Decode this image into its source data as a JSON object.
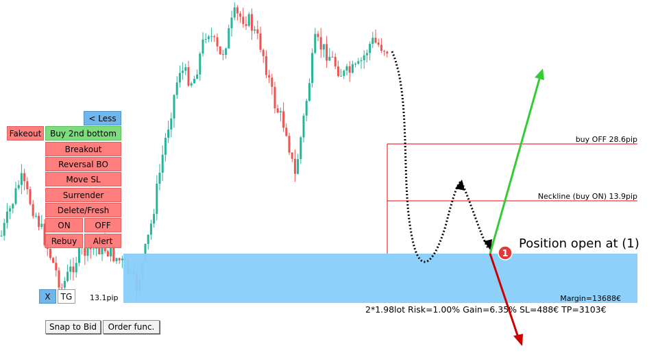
{
  "panel": {
    "less_button": "< Less",
    "fakeout": "Fakeout",
    "buy_2nd_bottom": "Buy 2nd bottom",
    "breakout": "Breakout",
    "reversal_bo": "Reversal BO",
    "move_sl": "Move SL",
    "surrender": "Surrender",
    "delete_fresh": "Delete/Fresh",
    "on": "ON",
    "off": "OFF",
    "rebuy": "Rebuy",
    "alert": "Alert",
    "x": "X",
    "tg": "TG",
    "pip": "13.1pip",
    "snap_to_bid": "Snap to Bid",
    "order_func": "Order func."
  },
  "levels": {
    "buy_off": "buy OFF   28.6pip",
    "neckline": "Neckline (buy ON) 13.9pip",
    "margin": "Margin=13688€",
    "summary": "2*1.98lot  Risk=1.00%  Gain=6.35%  SL=488€  TP=3103€"
  },
  "annotation": {
    "marker": "1",
    "text": "Position open at (1)"
  }
}
